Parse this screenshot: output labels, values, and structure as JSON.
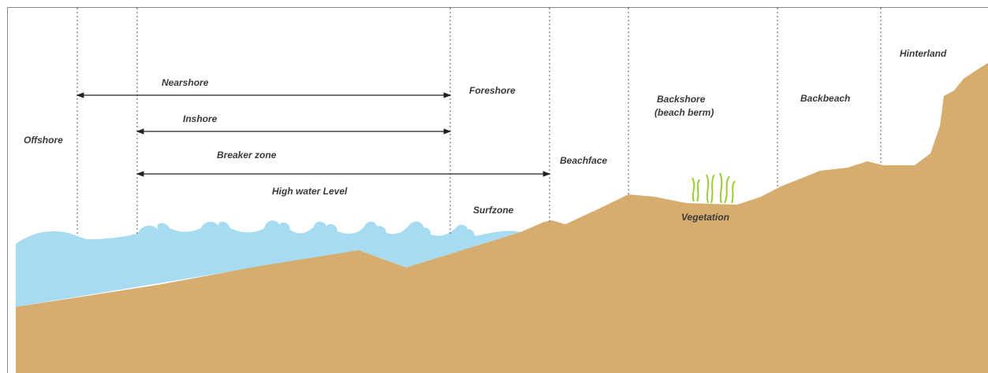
{
  "zones": {
    "offshore": "Offshore",
    "foreshore": "Foreshore",
    "beachface": "Beachface",
    "backshore": "Backshore",
    "beach_berm": "(beach berm)",
    "backbeach": "Backbeach",
    "hinterland": "Hinterland"
  },
  "ranges": {
    "nearshore": "Nearshore",
    "inshore": "Inshore",
    "breaker_zone": "Breaker zone"
  },
  "features": {
    "high_water_level": "High water Level",
    "surfzone": "Surfzone",
    "vegetation": "Vegetation"
  }
}
